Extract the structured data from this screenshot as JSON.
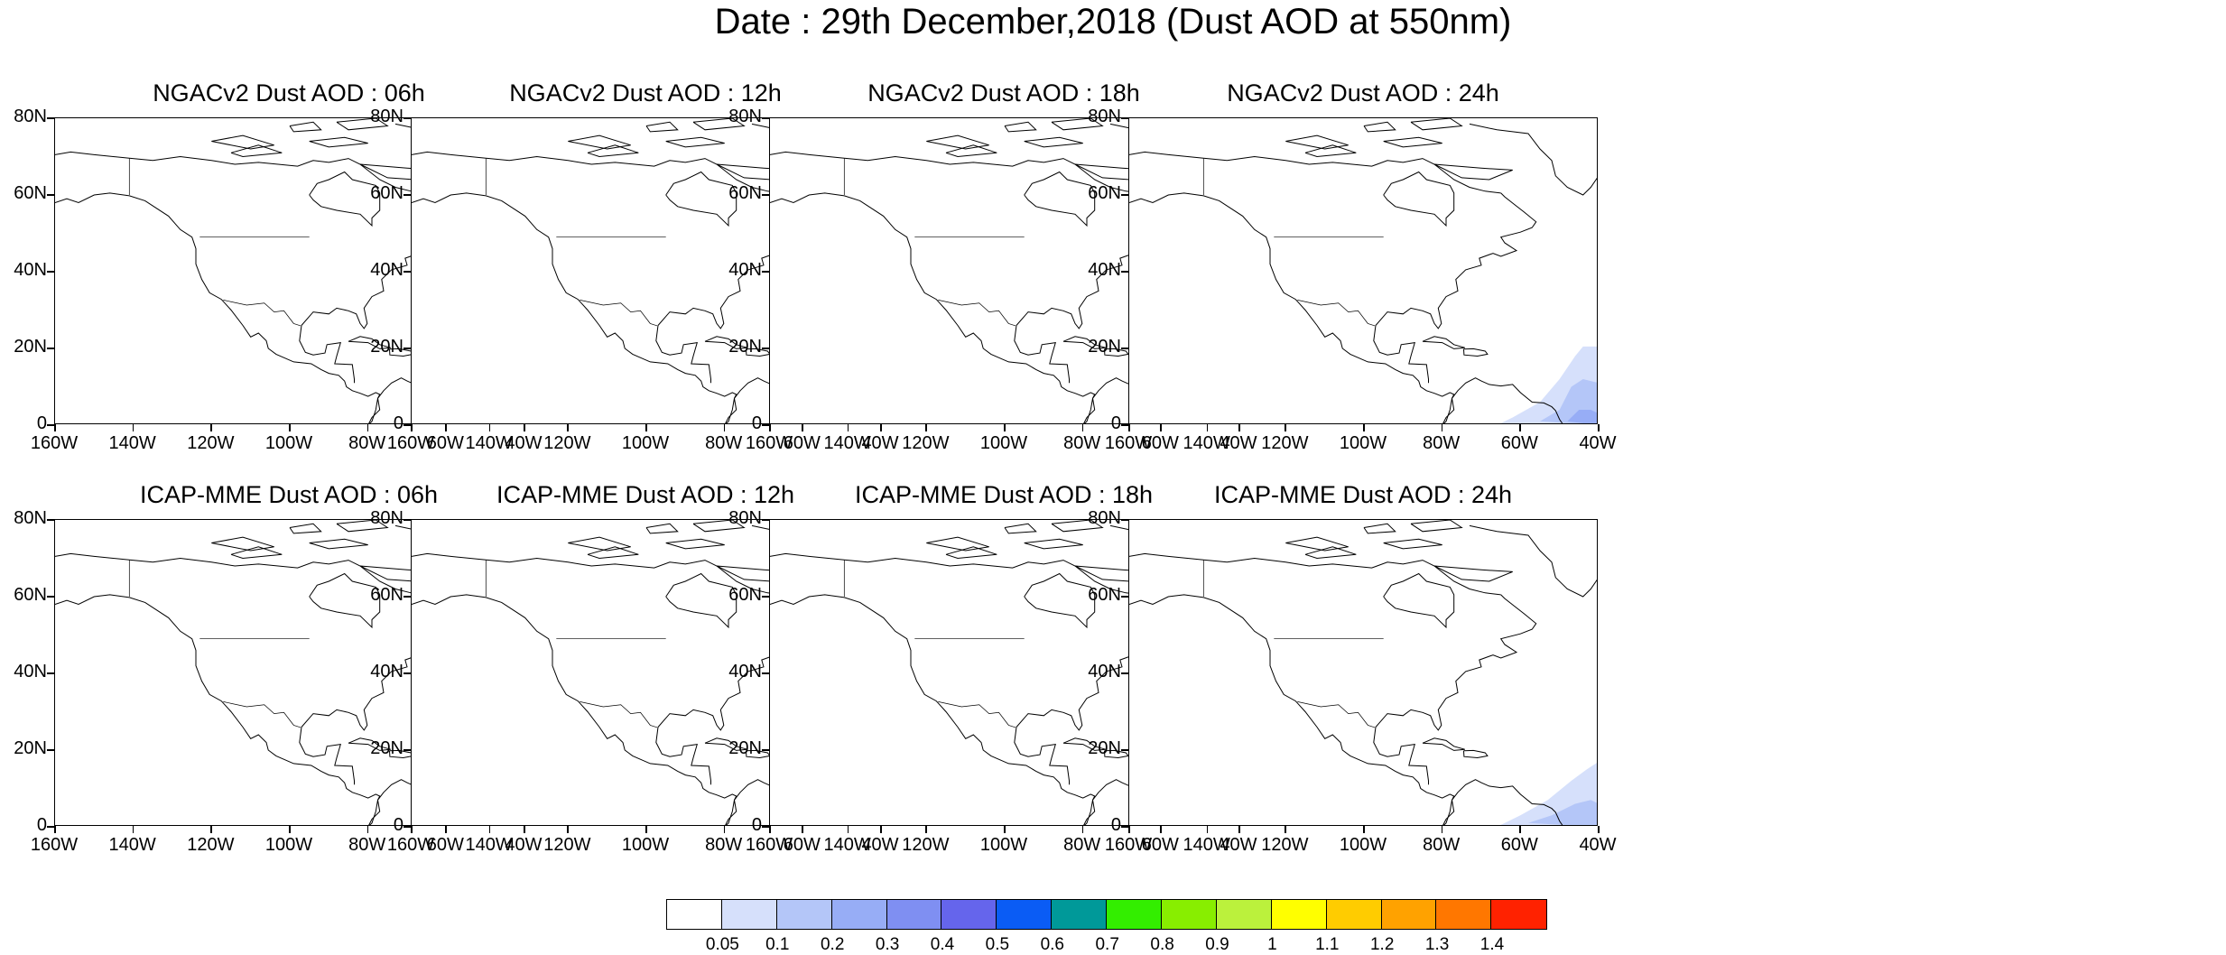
{
  "title": "Date : 29th December,2018 (Dust AOD at 550nm)",
  "axes": {
    "y_ticks": [
      "80N",
      "60N",
      "40N",
      "20N",
      "0"
    ],
    "x_ticks": [
      "160W",
      "140W",
      "120W",
      "100W",
      "80W",
      "60W",
      "40W"
    ],
    "lon_range": [
      -160,
      -40
    ],
    "lat_range": [
      0,
      80
    ]
  },
  "panels": [
    {
      "title": "NGACv2 Dust AOD : 06h",
      "model": "NGACv2",
      "hour": "06h"
    },
    {
      "title": "NGACv2 Dust AOD : 12h",
      "model": "NGACv2",
      "hour": "12h"
    },
    {
      "title": "NGACv2 Dust AOD : 18h",
      "model": "NGACv2",
      "hour": "18h"
    },
    {
      "title": "NGACv2 Dust AOD : 24h",
      "model": "NGACv2",
      "hour": "24h"
    },
    {
      "title": "ICAP-MME Dust AOD : 06h",
      "model": "ICAP-MME",
      "hour": "06h"
    },
    {
      "title": "ICAP-MME Dust AOD : 12h",
      "model": "ICAP-MME",
      "hour": "12h"
    },
    {
      "title": "ICAP-MME Dust AOD : 18h",
      "model": "ICAP-MME",
      "hour": "18h"
    },
    {
      "title": "ICAP-MME Dust AOD : 24h",
      "model": "ICAP-MME",
      "hour": "24h"
    }
  ],
  "colorbar": {
    "labels": [
      "0.05",
      "0.1",
      "0.2",
      "0.3",
      "0.4",
      "0.5",
      "0.6",
      "0.7",
      "0.8",
      "0.9",
      "1",
      "1.1",
      "1.2",
      "1.3",
      "1.4"
    ],
    "colors": [
      "#ffffff",
      "#d6e0fb",
      "#b4c6f8",
      "#97adf6",
      "#7f8ff2",
      "#6565ec",
      "#0a5cf5",
      "#009999",
      "#33ee00",
      "#88ee00",
      "#bbf13c",
      "#ffff00",
      "#ffcc00",
      "#ffa200",
      "#ff7700",
      "#ff2200"
    ]
  }
}
